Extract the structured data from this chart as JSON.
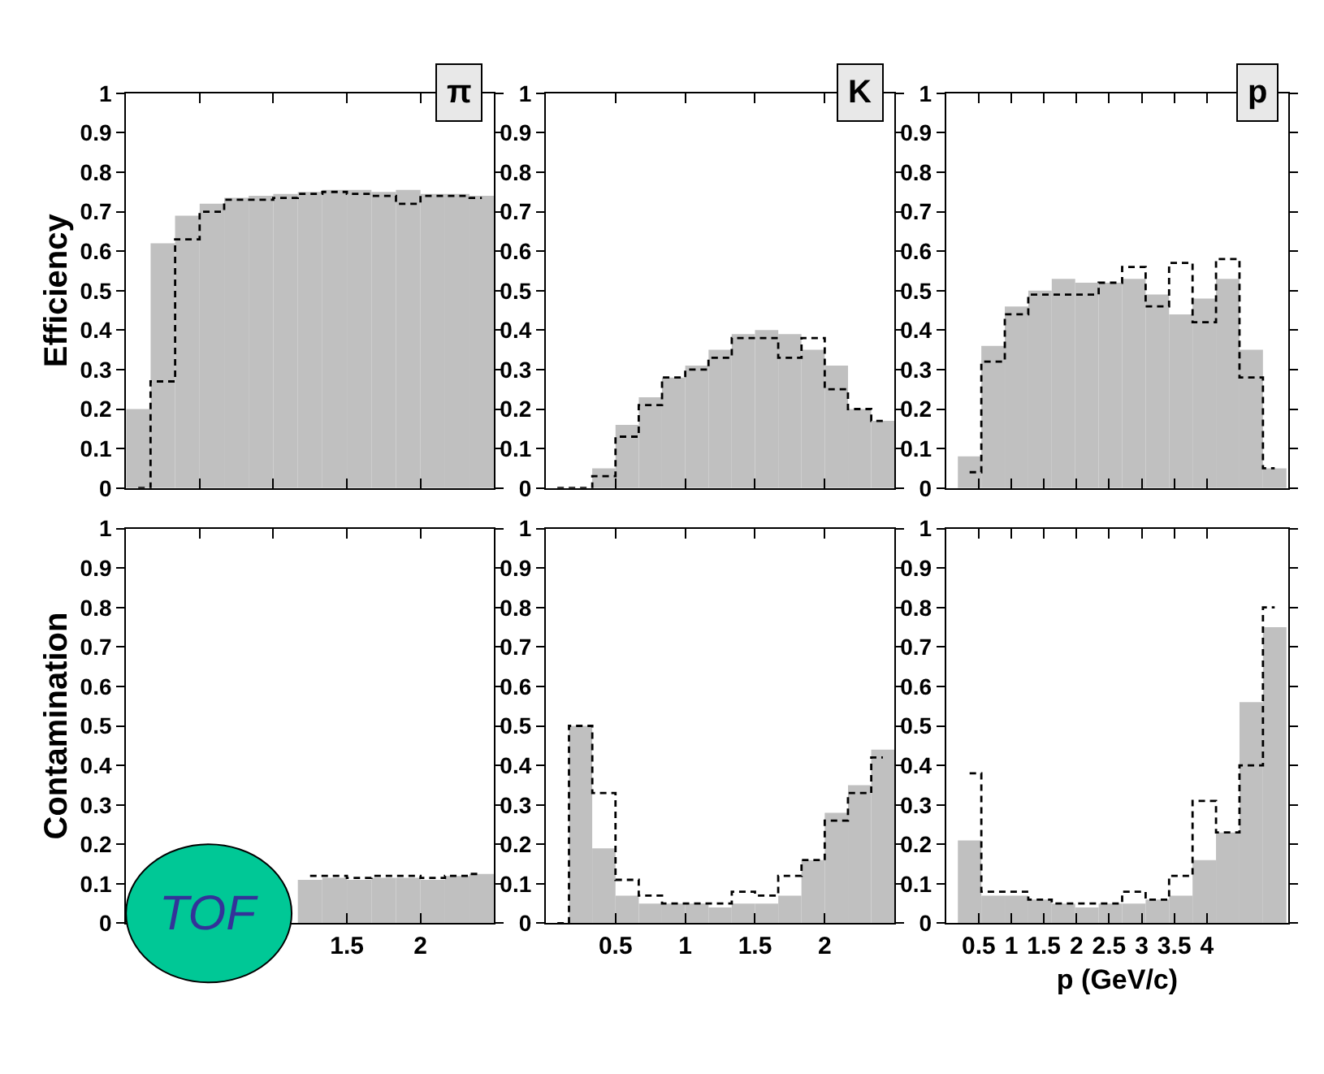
{
  "chart_data": [
    {
      "type": "histogram",
      "title": "π",
      "ylabel": "Efficiency",
      "bins": [
        0,
        0.167,
        0.333,
        0.5,
        0.667,
        0.833,
        1,
        1.167,
        1.333,
        1.5,
        1.667,
        1.833,
        2,
        2.167,
        2.333,
        2.5
      ],
      "xlim": [
        0,
        2.5
      ],
      "xticks": [
        0.5,
        1,
        1.5,
        2
      ],
      "ylim": [
        0,
        1
      ],
      "yticks": [
        0,
        0.1,
        0.2,
        0.3,
        0.4,
        0.5,
        0.6,
        0.7,
        0.8,
        0.9,
        1
      ],
      "tick_labels": "y",
      "grid": false,
      "legend": false,
      "series": [
        {
          "color": "#c0c0c0",
          "values": [
            0.2,
            0.62,
            0.69,
            0.72,
            0.735,
            0.74,
            0.745,
            0.75,
            0.755,
            0.755,
            0.75,
            0.755,
            0.745,
            0.745,
            0.74
          ]
        },
        {
          "type": "step",
          "line_style": "dashed",
          "color": "#000000",
          "x": [
            0.083,
            0.25,
            0.417,
            0.583,
            0.75,
            0.917,
            1.083,
            1.25,
            1.417,
            1.583,
            1.75,
            1.917,
            2.083,
            2.25,
            2.417
          ],
          "values": [
            0,
            0.27,
            0.63,
            0.7,
            0.73,
            0.73,
            0.735,
            0.745,
            0.75,
            0.745,
            0.74,
            0.72,
            0.74,
            0.74,
            0.735
          ]
        }
      ]
    },
    {
      "type": "histogram",
      "title": "K",
      "bins": [
        0,
        0.167,
        0.333,
        0.5,
        0.667,
        0.833,
        1,
        1.167,
        1.333,
        1.5,
        1.667,
        1.833,
        2,
        2.167,
        2.333,
        2.5
      ],
      "xlim": [
        0,
        2.5
      ],
      "xticks": [
        0.5,
        1,
        1.5,
        2
      ],
      "ylim": [
        0,
        1
      ],
      "yticks": [
        0,
        0.1,
        0.2,
        0.3,
        0.4,
        0.5,
        0.6,
        0.7,
        0.8,
        0.9,
        1
      ],
      "tick_labels": "y",
      "grid": false,
      "legend": false,
      "series": [
        {
          "color": "#c0c0c0",
          "values": [
            0,
            0,
            0.05,
            0.16,
            0.23,
            0.28,
            0.31,
            0.35,
            0.39,
            0.4,
            0.39,
            0.35,
            0.31,
            0.2,
            0.17
          ]
        },
        {
          "type": "step",
          "line_style": "dashed",
          "color": "#000000",
          "x": [
            0.083,
            0.25,
            0.417,
            0.583,
            0.75,
            0.917,
            1.083,
            1.25,
            1.417,
            1.583,
            1.75,
            1.917,
            2.083,
            2.25,
            2.417
          ],
          "values": [
            0,
            0,
            0.03,
            0.13,
            0.21,
            0.28,
            0.3,
            0.33,
            0.38,
            0.38,
            0.33,
            0.38,
            0.25,
            0.2,
            0.17
          ]
        }
      ]
    },
    {
      "type": "histogram",
      "title": "p",
      "bins": [
        0.18,
        0.54,
        0.9,
        1.26,
        1.62,
        1.98,
        2.34,
        2.7,
        3.06,
        3.42,
        3.78,
        4.14,
        4.5,
        4.86,
        5.22
      ],
      "xlim": [
        0,
        5.25
      ],
      "xticks": [
        0.5,
        1,
        1.5,
        2,
        2.5,
        3,
        3.5,
        4
      ],
      "ylim": [
        0,
        1
      ],
      "yticks": [
        0,
        0.1,
        0.2,
        0.3,
        0.4,
        0.5,
        0.6,
        0.7,
        0.8,
        0.9,
        1
      ],
      "tick_labels": "y",
      "grid": false,
      "legend": false,
      "series": [
        {
          "color": "#c0c0c0",
          "values": [
            0.08,
            0.36,
            0.46,
            0.5,
            0.53,
            0.52,
            0.52,
            0.53,
            0.49,
            0.44,
            0.48,
            0.53,
            0.35,
            0.05
          ]
        },
        {
          "type": "step",
          "line_style": "dashed",
          "color": "#000000",
          "x": [
            0.36,
            0.72,
            1.08,
            1.44,
            1.8,
            2.16,
            2.52,
            2.88,
            3.24,
            3.6,
            3.96,
            4.32,
            4.68,
            5.04
          ],
          "values": [
            0.04,
            0.32,
            0.44,
            0.49,
            0.49,
            0.49,
            0.52,
            0.56,
            0.46,
            0.57,
            0.42,
            0.58,
            0.28,
            0.05
          ]
        }
      ]
    },
    {
      "type": "histogram",
      "ylabel": "Contamination",
      "annotations": [
        "TOF"
      ],
      "bins": [
        0,
        0.167,
        0.333,
        0.5,
        0.667,
        0.833,
        1,
        1.167,
        1.333,
        1.5,
        1.667,
        1.833,
        2,
        2.167,
        2.333,
        2.5
      ],
      "xlim": [
        0,
        2.5
      ],
      "xticks": [
        {
          "value": 0.5,
          "label": null
        },
        {
          "value": 1,
          "label": null
        },
        1.5,
        2
      ],
      "ylim": [
        0,
        1
      ],
      "yticks": [
        0,
        0.1,
        0.2,
        0.3,
        0.4,
        0.5,
        0.6,
        0.7,
        0.8,
        0.9,
        1
      ],
      "grid": false,
      "legend": false,
      "series": [
        {
          "color": "#c0c0c0",
          "values": [
            null,
            null,
            null,
            null,
            null,
            null,
            null,
            0.11,
            0.115,
            0.11,
            0.115,
            0.115,
            0.11,
            0.12,
            0.125
          ]
        },
        {
          "type": "step",
          "line_style": "dashed",
          "color": "#000000",
          "x": [
            1.25,
            1.417,
            1.583,
            1.75,
            1.917,
            2.083,
            2.25,
            2.417
          ],
          "values": [
            0.12,
            0.12,
            0.115,
            0.12,
            0.12,
            0.115,
            0.12,
            0.125
          ]
        }
      ]
    },
    {
      "type": "histogram",
      "bins": [
        0,
        0.167,
        0.333,
        0.5,
        0.667,
        0.833,
        1,
        1.167,
        1.333,
        1.5,
        1.667,
        1.833,
        2,
        2.167,
        2.333,
        2.5
      ],
      "xlim": [
        0,
        2.5
      ],
      "xticks": [
        0.5,
        1,
        1.5,
        2
      ],
      "ylim": [
        0,
        1
      ],
      "yticks": [
        0,
        0.1,
        0.2,
        0.3,
        0.4,
        0.5,
        0.6,
        0.7,
        0.8,
        0.9,
        1
      ],
      "grid": false,
      "legend": false,
      "series": [
        {
          "color": "#c0c0c0",
          "values": [
            0,
            0.5,
            0.19,
            0.07,
            0.05,
            0.05,
            0.05,
            0.04,
            0.05,
            0.05,
            0.07,
            0.16,
            0.28,
            0.35,
            0.44
          ]
        },
        {
          "type": "step",
          "line_style": "dashed",
          "color": "#000000",
          "x": [
            0.083,
            0.25,
            0.417,
            0.583,
            0.75,
            0.917,
            1.083,
            1.25,
            1.417,
            1.583,
            1.75,
            1.917,
            2.083,
            2.25,
            2.417
          ],
          "values": [
            0,
            0.5,
            0.33,
            0.11,
            0.07,
            0.05,
            0.05,
            0.05,
            0.08,
            0.07,
            0.12,
            0.16,
            0.26,
            0.33,
            0.42
          ]
        }
      ]
    },
    {
      "type": "histogram",
      "xlabel": "p (GeV/c)",
      "bins": [
        0.18,
        0.54,
        0.9,
        1.26,
        1.62,
        1.98,
        2.34,
        2.7,
        3.06,
        3.42,
        3.78,
        4.14,
        4.5,
        4.86,
        5.22
      ],
      "xlim": [
        0,
        5.25
      ],
      "xticks": [
        0.5,
        1,
        1.5,
        2,
        2.5,
        3,
        3.5,
        4
      ],
      "ylim": [
        0,
        1
      ],
      "yticks": [
        0,
        0.1,
        0.2,
        0.3,
        0.4,
        0.5,
        0.6,
        0.7,
        0.8,
        0.9,
        1
      ],
      "grid": false,
      "legend": false,
      "series": [
        {
          "color": "#c0c0c0",
          "values": [
            0.21,
            0.07,
            0.07,
            0.06,
            0.05,
            0.04,
            0.05,
            0.05,
            0.06,
            0.07,
            0.16,
            0.23,
            0.56,
            0.75
          ]
        },
        {
          "type": "step",
          "line_style": "dashed",
          "color": "#000000",
          "x": [
            0.36,
            0.72,
            1.08,
            1.44,
            1.8,
            2.16,
            2.52,
            2.88,
            3.24,
            3.6,
            3.96,
            4.32,
            4.68,
            5.04
          ],
          "values": [
            0.38,
            0.08,
            0.08,
            0.06,
            0.05,
            0.05,
            0.05,
            0.08,
            0.06,
            0.12,
            0.31,
            0.23,
            0.4,
            0.8
          ]
        }
      ]
    }
  ]
}
